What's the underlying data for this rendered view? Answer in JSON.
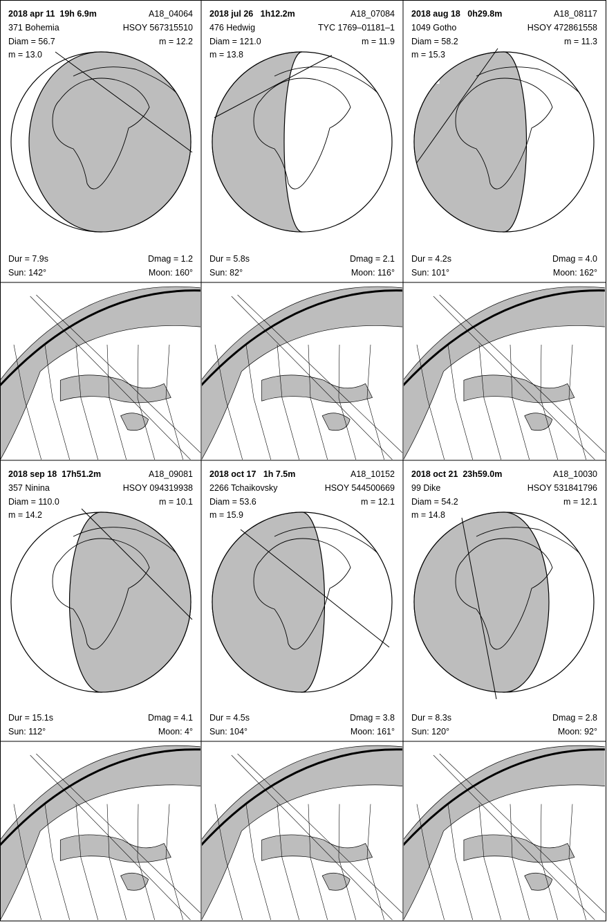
{
  "panels": [
    {
      "date": "2018 apr 11  19h 6.9m",
      "id": "A18_04064",
      "asteroid": "371 Bohemia",
      "star": "HSOY 567315510",
      "diam": "Diam = 56.7",
      "star_mag": "m = 12.2",
      "ast_mag": "m = 13.0",
      "dur": "Dur = 7.9s",
      "dmag": "Dmag = 1.2",
      "sun": "Sun: 142°",
      "moon": "Moon: 160°"
    },
    {
      "date": "2018 jul 26   1h12.2m",
      "id": "A18_07084",
      "asteroid": "476 Hedwig",
      "star": "TYC 1769–01181–1",
      "diam": "Diam = 121.0",
      "star_mag": "m = 11.9",
      "ast_mag": "m = 13.8",
      "dur": "Dur = 5.8s",
      "dmag": "Dmag = 2.1",
      "sun": "Sun: 82°",
      "moon": "Moon: 116°"
    },
    {
      "date": "2018 aug 18   0h29.8m",
      "id": "A18_08117",
      "asteroid": "1049 Gotho",
      "star": "HSOY 472861558",
      "diam": "Diam = 58.2",
      "star_mag": "m = 11.3",
      "ast_mag": "m = 15.3",
      "dur": "Dur = 4.2s",
      "dmag": "Dmag = 4.0",
      "sun": "Sun: 101°",
      "moon": "Moon: 162°"
    },
    {
      "date": "2018 sep 18  17h51.2m",
      "id": "A18_09081",
      "asteroid": "357 Ninina",
      "star": "HSOY 094319938",
      "diam": "Diam = 110.0",
      "star_mag": "m = 10.1",
      "ast_mag": "m = 14.2",
      "dur": "Dur = 15.1s",
      "dmag": "Dmag = 4.1",
      "sun": "Sun: 112°",
      "moon": "Moon: 4°"
    },
    {
      "date": "2018 oct 17   1h 7.5m",
      "id": "A18_10152",
      "asteroid": "2266 Tchaikovsky",
      "star": "HSOY 544500669",
      "diam": "Diam = 53.6",
      "star_mag": "m = 12.1",
      "ast_mag": "m = 15.9",
      "dur": "Dur = 4.5s",
      "dmag": "Dmag = 3.8",
      "sun": "Sun: 104°",
      "moon": "Moon: 161°"
    },
    {
      "date": "2018 oct 21  23h59.0m",
      "id": "A18_10030",
      "asteroid": "99 Dike",
      "star": "HSOY 531841796",
      "diam": "Diam = 54.2",
      "star_mag": "m = 12.1",
      "ast_mag": "m = 14.8",
      "dur": "Dur = 8.3s",
      "dmag": "Dmag = 2.8",
      "sun": "Sun: 120°",
      "moon": "Moon: 92°"
    }
  ]
}
